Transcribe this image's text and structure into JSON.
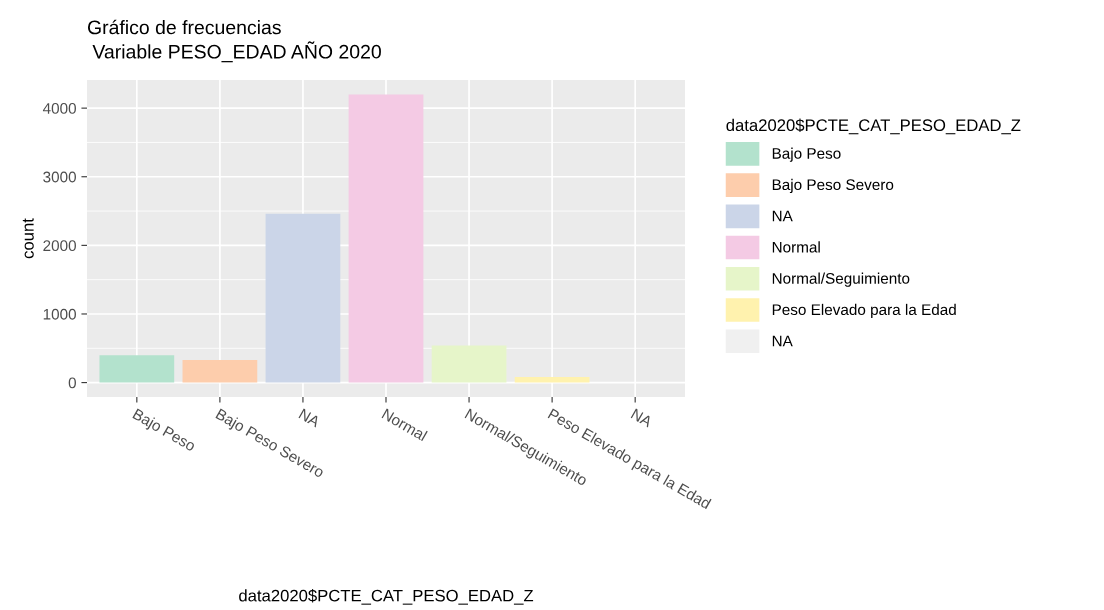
{
  "chart_data": {
    "type": "bar",
    "title": "Gráfico de frecuencias\n Variable PESO_EDAD AÑO 2020",
    "xlabel": "data2020$PCTE_CAT_PESO_EDAD_Z",
    "ylabel": "count",
    "legend_title": "data2020$PCTE_CAT_PESO_EDAD_Z",
    "categories": [
      "Bajo Peso",
      "Bajo Peso Severo",
      "NA",
      "Normal",
      "Normal/Seguimiento",
      "Peso Elevado para la Edad",
      "NA"
    ],
    "series": [
      {
        "name": "Bajo Peso",
        "color": "#b3e2cd",
        "values": [
          400,
          null,
          null,
          null,
          null,
          null,
          null
        ]
      },
      {
        "name": "Bajo Peso Severo",
        "color": "#fdcdac",
        "values": [
          null,
          330,
          null,
          null,
          null,
          null,
          null
        ]
      },
      {
        "name": "NA",
        "color": "#cbd5e8",
        "values": [
          null,
          null,
          2460,
          null,
          null,
          null,
          null
        ]
      },
      {
        "name": "Normal",
        "color": "#f4cae4",
        "values": [
          null,
          null,
          null,
          4200,
          null,
          null,
          null
        ]
      },
      {
        "name": "Normal/Seguimiento",
        "color": "#e6f5c9",
        "values": [
          null,
          null,
          null,
          null,
          540,
          null,
          null
        ]
      },
      {
        "name": "Peso Elevado para la Edad",
        "color": "#fff2ae",
        "values": [
          null,
          null,
          null,
          null,
          null,
          80,
          null
        ]
      },
      {
        "name": "NA",
        "color": "#f0f0f0",
        "values": [
          null,
          null,
          null,
          null,
          null,
          null,
          0
        ]
      }
    ],
    "ylim": [
      -210,
      4410
    ],
    "yticks": [
      0,
      1000,
      2000,
      3000,
      4000
    ],
    "grid": true,
    "legend": "right"
  }
}
